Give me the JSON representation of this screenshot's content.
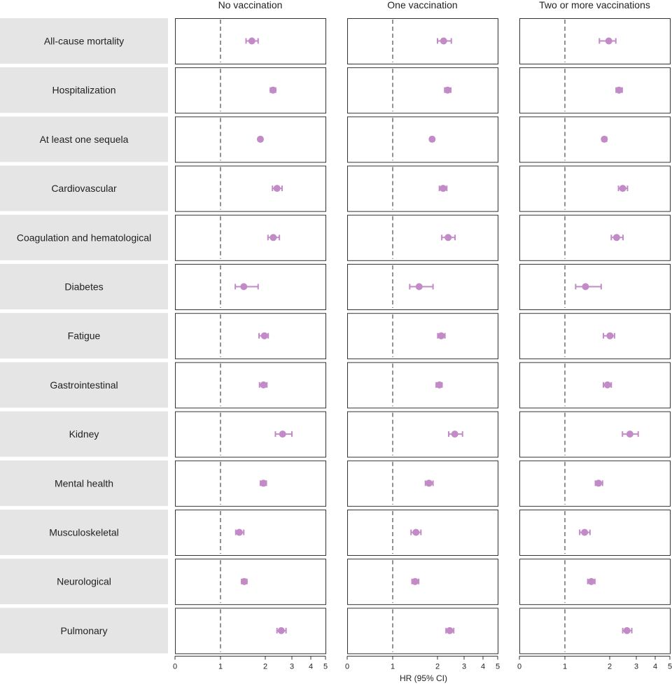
{
  "chart_data": {
    "type": "forest",
    "x_axis": {
      "label": "HR (95% CI)",
      "tick_labels": [
        "0",
        "1",
        "2",
        "3",
        "4",
        "5"
      ],
      "reference_line": 1
    },
    "panels": [
      "No vaccination",
      "One vaccination",
      "Two or more vaccinations"
    ],
    "outcomes": [
      "All-cause mortality",
      "Hospitalization",
      "At least one sequela",
      "Cardiovascular",
      "Coagulation and hematological",
      "Diabetes",
      "Fatigue",
      "Gastrointestinal",
      "Kidney",
      "Mental health",
      "Musculoskeletal",
      "Neurological",
      "Pulmonary"
    ],
    "series": [
      {
        "name": "No vaccination",
        "hr": [
          1.7,
          2.29,
          1.89,
          2.44,
          2.3,
          1.52,
          1.98,
          1.96,
          2.65,
          1.96,
          1.42,
          1.53,
          2.6
        ],
        "lower": [
          1.57,
          2.19,
          1.86,
          2.27,
          2.1,
          1.33,
          1.86,
          1.87,
          2.38,
          1.89,
          1.34,
          1.47,
          2.44
        ],
        "upper": [
          1.84,
          2.39,
          1.93,
          2.63,
          2.53,
          1.84,
          2.11,
          2.06,
          3.0,
          2.04,
          1.52,
          1.59,
          2.78
        ]
      },
      {
        "name": "One vaccination",
        "hr": [
          2.23,
          2.38,
          1.88,
          2.21,
          2.4,
          1.59,
          2.14,
          2.07,
          2.65,
          1.81,
          1.52,
          1.5,
          2.46
        ],
        "lower": [
          2.0,
          2.27,
          1.84,
          2.07,
          2.16,
          1.38,
          2.01,
          1.97,
          2.42,
          1.73,
          1.41,
          1.43,
          2.32
        ],
        "upper": [
          2.52,
          2.5,
          1.92,
          2.35,
          2.66,
          1.9,
          2.28,
          2.17,
          2.94,
          1.9,
          1.63,
          1.58,
          2.61
        ]
      },
      {
        "name": "Two or more vaccinations",
        "hr": [
          1.98,
          2.35,
          1.88,
          2.49,
          2.26,
          1.46,
          2.01,
          1.95,
          2.76,
          1.75,
          1.44,
          1.59,
          2.65
        ],
        "lower": [
          1.77,
          2.24,
          1.84,
          2.33,
          2.06,
          1.24,
          1.86,
          1.86,
          2.48,
          1.68,
          1.33,
          1.51,
          2.49
        ],
        "upper": [
          2.23,
          2.47,
          1.93,
          2.67,
          2.5,
          1.81,
          2.18,
          2.06,
          3.1,
          1.84,
          1.56,
          1.67,
          2.83
        ]
      }
    ],
    "colors": {
      "marker": "#c28bc7",
      "row_label_background": "#e5e5e5",
      "reference_line": "#777777",
      "panel_border": "#333333"
    }
  }
}
